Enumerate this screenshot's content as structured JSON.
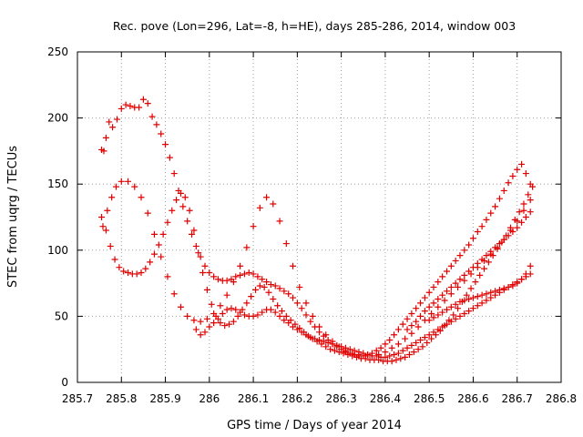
{
  "chart_data": {
    "type": "scatter",
    "title": "Rec. pove (Lon=296, Lat=-8, h=HE), days 285-286, 2014, window 003",
    "xlabel": "GPS time / Days of year 2014",
    "ylabel": "STEC from uqrg / TECUs",
    "xlim": [
      285.7,
      286.8
    ],
    "ylim": [
      0,
      250
    ],
    "xticks": [
      "285.7",
      "285.8",
      "285.9",
      "286",
      "286.1",
      "286.2",
      "286.3",
      "286.4",
      "286.5",
      "286.6",
      "286.7",
      "286.8"
    ],
    "yticks": [
      "0",
      "50",
      "100",
      "150",
      "200",
      "250"
    ],
    "grid": true,
    "marker": "+",
    "color": "#e00000",
    "series": [
      {
        "x": [
          285.755,
          285.76,
          285.765,
          285.772,
          285.78,
          285.79,
          285.8,
          285.81,
          285.82,
          285.83,
          285.84,
          285.85,
          285.86,
          285.87,
          285.88,
          285.89,
          285.9,
          285.91,
          285.92,
          285.93,
          285.94,
          285.95,
          285.96,
          285.97,
          285.98,
          285.99,
          286.0,
          286.01,
          286.02,
          286.03,
          286.04,
          286.05,
          286.06,
          286.07,
          286.08,
          286.09,
          286.1,
          286.11,
          286.12,
          286.13,
          286.14,
          286.15,
          286.16,
          286.17,
          286.18,
          286.19,
          286.2,
          286.21,
          286.22,
          286.23,
          286.24,
          286.25,
          286.26,
          286.27,
          286.28,
          286.29,
          286.3,
          286.31,
          286.32,
          286.33,
          286.34,
          286.35,
          286.36,
          286.37,
          286.38,
          286.39,
          286.4,
          286.41,
          286.42,
          286.43,
          286.44,
          286.45,
          286.46,
          286.47,
          286.48,
          286.49,
          286.5,
          286.51,
          286.52,
          286.53,
          286.54,
          286.55,
          286.56,
          286.57,
          286.58,
          286.59,
          286.6,
          286.61,
          286.62,
          286.63,
          286.64,
          286.65,
          286.66,
          286.67,
          286.68,
          286.69,
          286.7,
          286.71,
          286.72,
          286.73
        ],
        "y": [
          176,
          175,
          185,
          197,
          193,
          199,
          207,
          210,
          209,
          208,
          208,
          214,
          211,
          201,
          195,
          188,
          180,
          170,
          158,
          145,
          133,
          122,
          112,
          103,
          95,
          88,
          83,
          80,
          78,
          77,
          77,
          78,
          80,
          81,
          82,
          83,
          82,
          80,
          78,
          76,
          74,
          73,
          71,
          69,
          67,
          64,
          60,
          56,
          51,
          46,
          42,
          38,
          35,
          32,
          29,
          27,
          25,
          23,
          22,
          21,
          20,
          20,
          21,
          22,
          24,
          26,
          29,
          32,
          36,
          40,
          44,
          48,
          52,
          56,
          60,
          64,
          68,
          72,
          76,
          80,
          84,
          88,
          92,
          96,
          100,
          104,
          109,
          114,
          118,
          123,
          128,
          133,
          139,
          145,
          151,
          156,
          161,
          165,
          158,
          150
        ]
      },
      {
        "x": [
          285.755,
          285.765,
          285.775,
          285.785,
          285.795,
          285.805,
          285.815,
          285.825,
          285.835,
          285.845,
          285.855,
          285.865,
          285.875,
          285.885,
          285.895,
          285.905,
          285.915,
          285.925,
          285.935,
          285.945,
          285.955,
          285.965,
          285.975,
          285.985,
          285.995,
          286.005,
          286.015,
          286.025,
          286.035,
          286.045,
          286.055,
          286.065,
          286.075,
          286.085,
          286.095,
          286.105,
          286.115,
          286.125,
          286.135,
          286.145,
          286.155,
          286.165,
          286.175,
          286.185,
          286.195,
          286.205,
          286.215,
          286.225,
          286.235,
          286.245,
          286.255,
          286.265,
          286.275,
          286.285,
          286.295,
          286.305,
          286.315,
          286.325,
          286.335,
          286.345,
          286.355,
          286.365,
          286.375,
          286.385,
          286.395,
          286.405,
          286.415,
          286.425,
          286.435,
          286.445,
          286.455,
          286.465,
          286.475,
          286.485,
          286.495,
          286.505,
          286.515,
          286.525,
          286.535,
          286.545,
          286.555,
          286.565,
          286.575,
          286.585,
          286.595,
          286.605,
          286.615,
          286.625,
          286.635,
          286.645,
          286.655,
          286.665,
          286.675,
          286.685,
          286.695,
          286.705,
          286.715,
          286.725,
          286.735
        ],
        "y": [
          125,
          115,
          103,
          93,
          87,
          84,
          83,
          82,
          82,
          83,
          86,
          91,
          97,
          104,
          112,
          121,
          130,
          138,
          143,
          140,
          130,
          115,
          98,
          83,
          70,
          59,
          50,
          45,
          43,
          44,
          46,
          50,
          55,
          60,
          65,
          70,
          73,
          72,
          68,
          63,
          58,
          54,
          50,
          47,
          44,
          41,
          38,
          35,
          33,
          31,
          29,
          27,
          25,
          24,
          23,
          22,
          21,
          20,
          19,
          18,
          18,
          17,
          17,
          17,
          16,
          16,
          16,
          17,
          18,
          19,
          21,
          23,
          25,
          27,
          30,
          33,
          36,
          39,
          43,
          47,
          51,
          56,
          61,
          66,
          71,
          76,
          81,
          86,
          91,
          96,
          101,
          106,
          111,
          117,
          123,
          129,
          135,
          142,
          148
        ]
      },
      {
        "x": [
          285.758,
          285.768,
          285.778,
          285.788,
          285.8,
          285.815,
          285.83,
          285.845,
          285.86,
          285.875,
          285.89,
          285.905,
          285.92,
          285.935,
          285.95,
          285.965,
          285.98,
          285.995,
          286.01,
          286.025,
          286.04,
          286.055,
          286.07,
          286.085,
          286.1,
          286.115,
          286.13,
          286.145,
          286.16,
          286.175,
          286.19,
          286.205,
          286.22,
          286.235,
          286.25,
          286.265,
          286.28,
          286.295,
          286.31,
          286.325,
          286.34,
          286.355,
          286.37,
          286.385,
          286.4,
          286.415,
          286.43,
          286.445,
          286.46,
          286.475,
          286.49,
          286.505,
          286.52,
          286.535,
          286.55,
          286.565,
          286.58,
          286.595,
          286.61,
          286.625,
          286.64,
          286.655,
          286.67,
          286.685,
          286.7,
          286.715,
          286.73
        ],
        "y": [
          118,
          130,
          140,
          148,
          152,
          152,
          148,
          140,
          128,
          112,
          95,
          80,
          67,
          57,
          50,
          47,
          46,
          48,
          52,
          58,
          66,
          76,
          88,
          102,
          118,
          132,
          140,
          135,
          122,
          105,
          88,
          72,
          60,
          50,
          42,
          36,
          31,
          27,
          24,
          22,
          21,
          20,
          20,
          21,
          23,
          26,
          29,
          33,
          37,
          42,
          47,
          52,
          57,
          62,
          67,
          72,
          77,
          82,
          87,
          92,
          97,
          102,
          108,
          115,
          122,
          130,
          138
        ]
      },
      {
        "x": [
          285.97,
          285.98,
          285.99,
          286.0,
          286.01,
          286.02,
          286.03,
          286.04,
          286.05,
          286.06,
          286.07,
          286.08,
          286.09,
          286.1,
          286.11,
          286.12,
          286.13,
          286.14,
          286.15,
          286.16,
          286.17,
          286.18,
          286.19,
          286.2,
          286.21,
          286.22,
          286.23,
          286.24,
          286.25,
          286.26,
          286.27,
          286.28,
          286.29,
          286.3,
          286.31,
          286.32,
          286.33,
          286.34,
          286.35,
          286.36,
          286.37,
          286.38,
          286.39,
          286.4,
          286.41,
          286.42,
          286.43,
          286.44,
          286.45,
          286.46,
          286.47,
          286.48,
          286.49,
          286.5,
          286.51,
          286.52,
          286.53,
          286.54,
          286.55,
          286.56,
          286.57,
          286.58,
          286.59,
          286.6,
          286.61,
          286.62,
          286.63,
          286.64,
          286.65,
          286.66,
          286.67,
          286.68,
          286.69,
          286.7,
          286.71,
          286.72,
          286.73
        ],
        "y": [
          40,
          36,
          38,
          42,
          45,
          48,
          52,
          55,
          56,
          55,
          53,
          51,
          50,
          50,
          51,
          53,
          55,
          55,
          53,
          50,
          47,
          45,
          42,
          40,
          38,
          36,
          34,
          33,
          32,
          31,
          30,
          29,
          28,
          27,
          26,
          25,
          24,
          23,
          22,
          21,
          20,
          20,
          19,
          19,
          20,
          21,
          22,
          24,
          26,
          28,
          30,
          32,
          34,
          36,
          38,
          40,
          42,
          44,
          46,
          48,
          50,
          52,
          54,
          56,
          58,
          60,
          62,
          64,
          66,
          68,
          70,
          72,
          74,
          76,
          78,
          80,
          82
        ]
      },
      {
        "x": [
          286.45,
          286.46,
          286.47,
          286.48,
          286.49,
          286.5,
          286.51,
          286.52,
          286.53,
          286.54,
          286.55,
          286.56,
          286.57,
          286.58,
          286.59,
          286.6,
          286.61,
          286.62,
          286.63,
          286.64,
          286.65,
          286.66,
          286.67,
          286.68,
          286.69,
          286.7,
          286.71,
          286.72,
          286.73
        ],
        "y": [
          40,
          43,
          46,
          50,
          54,
          57,
          60,
          63,
          66,
          69,
          72,
          75,
          78,
          81,
          84,
          87,
          90,
          93,
          96,
          99,
          102,
          105,
          108,
          111,
          114,
          117,
          121,
          125,
          129
        ]
      },
      {
        "x": [
          286.5,
          286.51,
          286.52,
          286.53,
          286.54,
          286.55,
          286.56,
          286.57,
          286.58,
          286.59,
          286.6,
          286.61,
          286.62,
          286.63,
          286.64,
          286.65,
          286.66,
          286.67,
          286.68,
          286.69,
          286.7,
          286.71,
          286.72,
          286.73
        ],
        "y": [
          47,
          49,
          51,
          53,
          55,
          57,
          59,
          61,
          62,
          63,
          64,
          65,
          66,
          67,
          68,
          69,
          70,
          71,
          72,
          73,
          75,
          78,
          82,
          88
        ]
      }
    ]
  }
}
